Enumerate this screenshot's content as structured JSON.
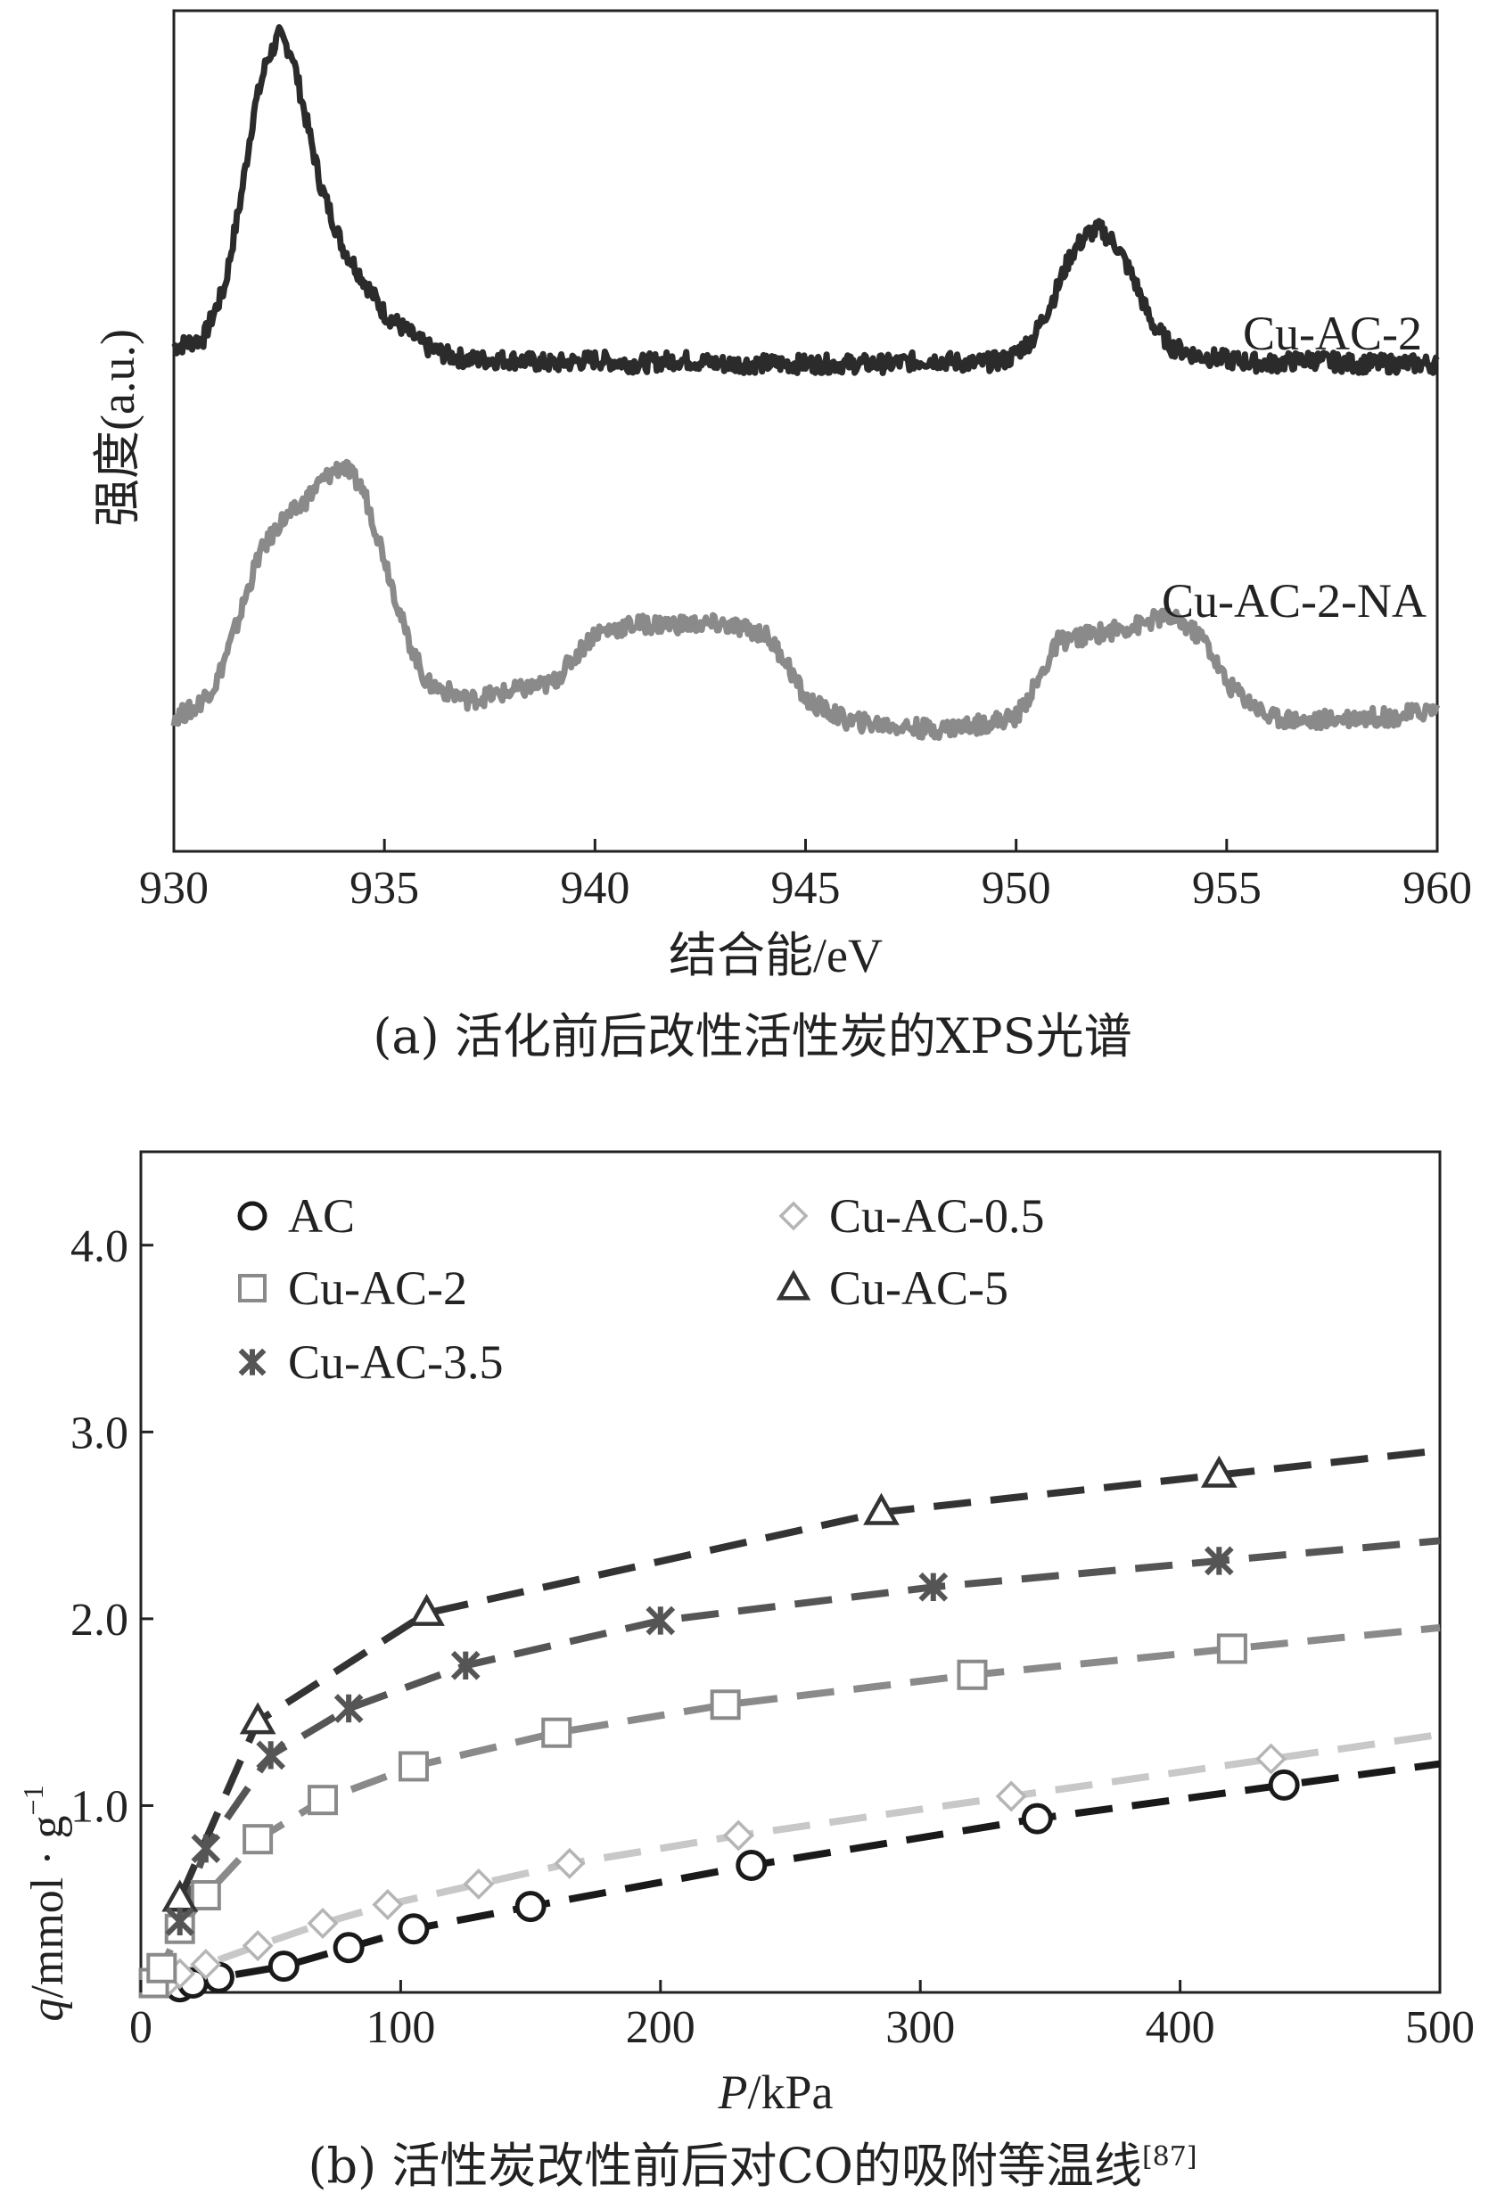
{
  "chart_data": [
    {
      "type": "line",
      "panel": "a",
      "caption": "(a) 活化前后改性活性炭的XPS光谱",
      "xlabel": "结合能/eV",
      "ylabel": "强度(a.u.)",
      "xlim": [
        930,
        960
      ],
      "xticks": [
        930,
        935,
        940,
        945,
        950,
        955,
        960
      ],
      "tick_labels": [
        "930",
        "935",
        "940",
        "945",
        "950",
        "955",
        "960"
      ],
      "ylim": [
        0,
        1
      ],
      "series": [
        {
          "name": "Cu-AC-2",
          "label": "Cu-AC-2",
          "color": "#2b2b2b",
          "x": [
            930,
            930.7,
            931.2,
            931.6,
            931.9,
            932.2,
            932.5,
            932.8,
            933.1,
            933.5,
            934,
            934.5,
            935,
            935.5,
            936,
            936.5,
            937,
            938,
            939,
            940,
            941,
            942,
            943,
            944,
            945,
            946,
            947,
            948,
            949,
            949.8,
            950.4,
            950.9,
            951.3,
            951.7,
            952,
            952.4,
            952.8,
            953.2,
            953.7,
            954.3,
            955,
            956,
            957,
            958,
            960
          ],
          "y": [
            0.6,
            0.61,
            0.67,
            0.78,
            0.88,
            0.94,
            0.97,
            0.95,
            0.88,
            0.79,
            0.72,
            0.68,
            0.64,
            0.62,
            0.6,
            0.59,
            0.585,
            0.585,
            0.58,
            0.585,
            0.58,
            0.585,
            0.58,
            0.58,
            0.58,
            0.58,
            0.58,
            0.585,
            0.58,
            0.585,
            0.61,
            0.66,
            0.71,
            0.735,
            0.74,
            0.72,
            0.68,
            0.63,
            0.6,
            0.59,
            0.585,
            0.58,
            0.585,
            0.58,
            0.58
          ]
        },
        {
          "name": "Cu-AC-2-NA",
          "label": "Cu-AC-2-NA",
          "color": "#8a8a8a",
          "x": [
            930,
            930.5,
            931,
            931.5,
            932,
            932.5,
            933,
            933.5,
            934,
            934.5,
            935,
            935.5,
            936,
            937,
            938,
            939,
            940,
            941,
            942,
            943,
            944,
            944.5,
            945,
            946,
            947,
            948,
            949,
            950,
            950.5,
            951,
            952,
            953,
            953.5,
            954,
            954.5,
            955,
            956,
            957,
            958,
            959,
            960
          ],
          "y": [
            0.16,
            0.17,
            0.2,
            0.27,
            0.35,
            0.39,
            0.41,
            0.44,
            0.46,
            0.43,
            0.35,
            0.26,
            0.2,
            0.18,
            0.19,
            0.2,
            0.26,
            0.27,
            0.27,
            0.27,
            0.26,
            0.23,
            0.18,
            0.155,
            0.15,
            0.145,
            0.15,
            0.16,
            0.2,
            0.25,
            0.26,
            0.27,
            0.28,
            0.27,
            0.25,
            0.2,
            0.16,
            0.155,
            0.16,
            0.16,
            0.17
          ]
        }
      ]
    },
    {
      "type": "scatter",
      "panel": "b",
      "caption": "(b) 活性炭改性前后对CO的吸附等温线",
      "caption_ref": "[87]",
      "xlabel_var": "P",
      "xlabel_unit": "/kPa",
      "ylabel_var": "q",
      "ylabel_unit": "/mmol · g",
      "ylabel_exp": "−1",
      "xlim": [
        0,
        500
      ],
      "ylim": [
        0,
        4.5
      ],
      "xticks": [
        0,
        100,
        200,
        300,
        400,
        500
      ],
      "xtick_labels": [
        "0",
        "100",
        "200",
        "300",
        "400",
        "500"
      ],
      "yticks": [
        1.0,
        2.0,
        3.0,
        4.0
      ],
      "ytick_labels": [
        "1.0",
        "2.0",
        "3.0",
        "4.0"
      ],
      "legend_position": "top-left",
      "series": [
        {
          "name": "AC",
          "marker": "circle",
          "color": "#1a1a1a",
          "x": [
            15,
            20,
            30,
            55,
            80,
            105,
            150,
            235,
            345,
            440
          ],
          "y": [
            0.03,
            0.05,
            0.08,
            0.14,
            0.24,
            0.34,
            0.46,
            0.68,
            0.93,
            1.11
          ]
        },
        {
          "name": "Cu-AC-0.5",
          "marker": "diamond",
          "color": "#b5b5b5",
          "x": [
            10,
            15,
            25,
            45,
            70,
            95,
            130,
            165,
            230,
            335,
            435
          ],
          "y": [
            0.05,
            0.1,
            0.15,
            0.25,
            0.37,
            0.47,
            0.58,
            0.69,
            0.84,
            1.05,
            1.25
          ]
        },
        {
          "name": "Cu-AC-2",
          "marker": "square",
          "color": "#8a8a8a",
          "x": [
            5,
            8,
            15,
            25,
            45,
            70,
            105,
            160,
            225,
            320,
            420
          ],
          "y": [
            0.05,
            0.13,
            0.34,
            0.52,
            0.82,
            1.03,
            1.21,
            1.39,
            1.54,
            1.7,
            1.84
          ]
        },
        {
          "name": "Cu-AC-5",
          "marker": "triangle",
          "color": "#333333",
          "x": [
            15,
            45,
            110,
            285,
            415
          ],
          "y": [
            0.5,
            1.45,
            2.03,
            2.57,
            2.77
          ]
        },
        {
          "name": "Cu-AC-3.5",
          "marker": "star",
          "color": "#555555",
          "x": [
            15,
            25,
            50,
            80,
            125,
            200,
            305,
            415
          ],
          "y": [
            0.38,
            0.77,
            1.27,
            1.52,
            1.75,
            1.99,
            2.17,
            2.31
          ]
        }
      ],
      "fit_curves": [
        {
          "name": "Cu-AC-5 fit",
          "color": "#333333",
          "dash": "long"
        },
        {
          "name": "Cu-AC-3.5 fit",
          "color": "#555555",
          "dash": "long"
        },
        {
          "name": "Cu-AC-2 fit",
          "color": "#8a8a8a",
          "dash": "long"
        },
        {
          "name": "Cu-AC-0.5 fit",
          "color": "#c8c8c8",
          "dash": "long"
        },
        {
          "name": "AC fit",
          "color": "#1a1a1a",
          "dash": "long"
        }
      ]
    }
  ]
}
